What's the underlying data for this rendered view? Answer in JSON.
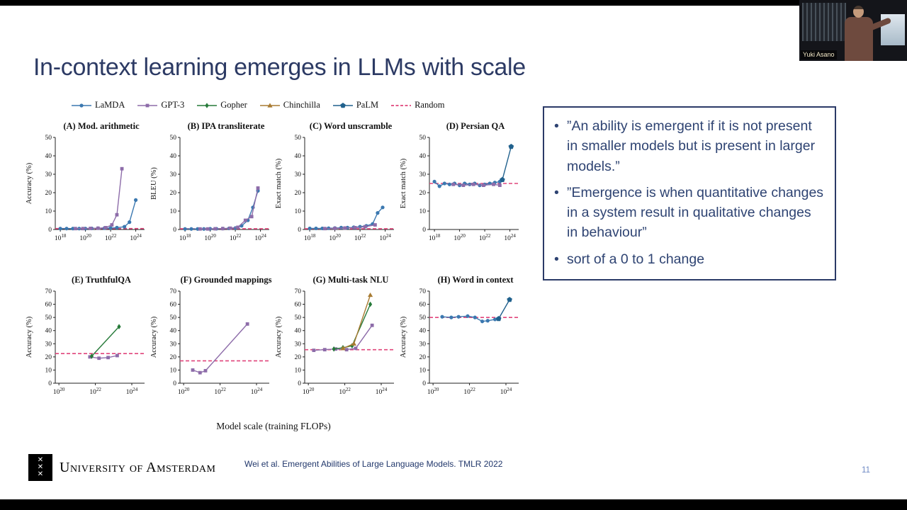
{
  "webcam": {
    "speaker_label": "Yuki Asano"
  },
  "slide": {
    "title": "In-context learning emerges in LLMs with scale",
    "bullets": [
      "”An ability is emergent if it is not present in smaller models but is present in larger models.”",
      "”Emergence is when quantitative changes in a system result in qualitative changes in behaviour”",
      "sort of a 0 to 1 change"
    ],
    "citation": "Wei et al. Emergent Abilities of Large Language Models. TMLR 2022",
    "page_number": "11",
    "footer_logo_text": "University of Amsterdam",
    "accent_color": "#2c3a64"
  },
  "figure": {
    "xlabel": "Model scale (training FLOPs)",
    "legend": [
      {
        "name": "LaMDA",
        "marker": "circle",
        "color": "#3b78b0"
      },
      {
        "name": "GPT-3",
        "marker": "square",
        "color": "#8d6ca9"
      },
      {
        "name": "Gopher",
        "marker": "diamond",
        "color": "#267a39"
      },
      {
        "name": "Chinchilla",
        "marker": "triangle",
        "color": "#a87b32"
      },
      {
        "name": "PaLM",
        "marker": "pentagon",
        "color": "#20618d"
      },
      {
        "name": "Random",
        "marker": "dashed-line",
        "color": "#e0457b"
      }
    ]
  },
  "chart_data": [
    {
      "id": "a",
      "row": 1,
      "type": "line",
      "title": "(A) Mod. arithmetic",
      "ylabel": "Accuracy (%)",
      "ylim": [
        0,
        50
      ],
      "yticks": [
        0,
        10,
        20,
        30,
        40,
        50
      ],
      "xlim": [
        17.6,
        24.7
      ],
      "xticks": [
        18,
        20,
        22,
        24
      ],
      "random": 0.5,
      "series": [
        {
          "name": "LaMDA",
          "points": [
            [
              18,
              0.5
            ],
            [
              18.5,
              0.5
            ],
            [
              19,
              0.5
            ],
            [
              19.5,
              0.5
            ],
            [
              20,
              0.5
            ],
            [
              20.5,
              0.6
            ],
            [
              21,
              0.7
            ],
            [
              21.5,
              0.7
            ],
            [
              22,
              0.8
            ],
            [
              22.5,
              1
            ],
            [
              23.1,
              1.5
            ],
            [
              23.5,
              4
            ],
            [
              24,
              16
            ]
          ]
        },
        {
          "name": "GPT-3",
          "points": [
            [
              19.2,
              0.5
            ],
            [
              19.8,
              0.5
            ],
            [
              20.4,
              0.6
            ],
            [
              21,
              0.7
            ],
            [
              21.6,
              1
            ],
            [
              22.1,
              2.5
            ],
            [
              22.5,
              8
            ],
            [
              22.9,
              33
            ]
          ]
        }
      ]
    },
    {
      "id": "b",
      "row": 1,
      "type": "line",
      "title": "(B) IPA transliterate",
      "ylabel": "BLEU (%)",
      "ylim": [
        0,
        50
      ],
      "yticks": [
        0,
        10,
        20,
        30,
        40,
        50
      ],
      "xlim": [
        17.6,
        24.7
      ],
      "xticks": [
        18,
        20,
        22,
        24
      ],
      "random": 0.4,
      "series": [
        {
          "name": "LaMDA",
          "points": [
            [
              18,
              0.3
            ],
            [
              18.5,
              0.3
            ],
            [
              19,
              0.3
            ],
            [
              19.5,
              0.3
            ],
            [
              20,
              0.4
            ],
            [
              20.5,
              0.4
            ],
            [
              21,
              0.5
            ],
            [
              21.5,
              0.6
            ],
            [
              22,
              0.8
            ],
            [
              22.5,
              2
            ],
            [
              23,
              5
            ],
            [
              23.4,
              12
            ],
            [
              23.8,
              21
            ]
          ]
        },
        {
          "name": "GPT-3",
          "points": [
            [
              19.2,
              0.3
            ],
            [
              19.8,
              0.3
            ],
            [
              20.4,
              0.4
            ],
            [
              21,
              0.5
            ],
            [
              21.6,
              0.7
            ],
            [
              22.2,
              1.2
            ],
            [
              22.8,
              5
            ],
            [
              23.3,
              7
            ],
            [
              23.8,
              22.5
            ]
          ]
        }
      ]
    },
    {
      "id": "c",
      "row": 1,
      "type": "line",
      "title": "(C) Word unscramble",
      "ylabel": "Exact match (%)",
      "ylim": [
        0,
        50
      ],
      "yticks": [
        0,
        10,
        20,
        30,
        40,
        50
      ],
      "xlim": [
        17.6,
        24.7
      ],
      "xticks": [
        18,
        20,
        22,
        24
      ],
      "random": 0.4,
      "series": [
        {
          "name": "LaMDA",
          "points": [
            [
              18,
              0.6
            ],
            [
              18.5,
              0.6
            ],
            [
              19,
              0.6
            ],
            [
              19.5,
              0.7
            ],
            [
              20,
              0.8
            ],
            [
              20.5,
              1
            ],
            [
              21,
              1
            ],
            [
              21.5,
              1.2
            ],
            [
              22,
              1.5
            ],
            [
              22.5,
              2
            ],
            [
              23,
              3
            ],
            [
              23.4,
              9
            ],
            [
              23.8,
              12
            ]
          ]
        },
        {
          "name": "GPT-3",
          "points": [
            [
              19.2,
              0.5
            ],
            [
              20,
              0.6
            ],
            [
              20.8,
              0.8
            ],
            [
              21.6,
              1
            ],
            [
              22.4,
              1.5
            ],
            [
              23.2,
              2.5
            ]
          ]
        }
      ]
    },
    {
      "id": "d",
      "row": 1,
      "type": "line",
      "title": "(D) Persian QA",
      "ylabel": "Exact match (%)",
      "ylim": [
        0,
        50
      ],
      "yticks": [
        0,
        10,
        20,
        30,
        40,
        50
      ],
      "xlim": [
        17.6,
        24.7
      ],
      "xticks": [
        18,
        20,
        22,
        24
      ],
      "random": 25,
      "series": [
        {
          "name": "LaMDA",
          "points": [
            [
              18,
              26
            ],
            [
              18.4,
              23.5
            ],
            [
              18.8,
              25
            ],
            [
              19.2,
              24.5
            ],
            [
              19.6,
              25
            ],
            [
              20,
              24
            ],
            [
              20.4,
              25
            ],
            [
              20.8,
              24.5
            ],
            [
              21.2,
              25
            ],
            [
              21.6,
              24
            ],
            [
              22,
              24.5
            ],
            [
              22.4,
              25
            ],
            [
              22.8,
              25.5
            ],
            [
              23.2,
              26
            ]
          ]
        },
        {
          "name": "GPT-3",
          "points": [
            [
              19.5,
              24.5
            ],
            [
              20.3,
              24
            ],
            [
              21.1,
              24.5
            ],
            [
              21.9,
              24
            ],
            [
              22.7,
              24.5
            ],
            [
              23.2,
              24
            ]
          ]
        },
        {
          "name": "PaLM",
          "points": [
            [
              23.4,
              27
            ],
            [
              24.1,
              45
            ]
          ]
        }
      ]
    },
    {
      "id": "e",
      "row": 2,
      "type": "line",
      "title": "(E) TruthfulQA",
      "ylabel": "Accuracy (%)",
      "ylim": [
        0,
        70
      ],
      "yticks": [
        0,
        10,
        20,
        30,
        40,
        50,
        60,
        70
      ],
      "xlim": [
        19.8,
        24.7
      ],
      "xticks": [
        20,
        22,
        24
      ],
      "random": 22.5,
      "series": [
        {
          "name": "GPT-3",
          "points": [
            [
              21.7,
              20
            ],
            [
              22.2,
              19
            ],
            [
              22.7,
              19.5
            ],
            [
              23.2,
              21
            ]
          ]
        },
        {
          "name": "Gopher",
          "points": [
            [
              21.8,
              20.5
            ],
            [
              23.3,
              43
            ]
          ]
        }
      ]
    },
    {
      "id": "f",
      "row": 2,
      "type": "line",
      "title": "(F) Grounded mappings",
      "ylabel": "Accuracy (%)",
      "ylim": [
        0,
        70
      ],
      "yticks": [
        0,
        10,
        20,
        30,
        40,
        50,
        60,
        70
      ],
      "xlim": [
        19.8,
        24.7
      ],
      "xticks": [
        20,
        22,
        24
      ],
      "random": 17,
      "series": [
        {
          "name": "GPT-3",
          "points": [
            [
              20.5,
              10
            ],
            [
              20.9,
              8
            ],
            [
              21.2,
              9.5
            ],
            [
              23.5,
              45
            ]
          ]
        }
      ]
    },
    {
      "id": "g",
      "row": 2,
      "type": "line",
      "title": "(G) Multi-task NLU",
      "ylabel": "Accuracy (%)",
      "ylim": [
        0,
        70
      ],
      "yticks": [
        0,
        10,
        20,
        30,
        40,
        50,
        60,
        70
      ],
      "xlim": [
        19.8,
        24.7
      ],
      "xticks": [
        20,
        22,
        24
      ],
      "random": 25.5,
      "series": [
        {
          "name": "GPT-3",
          "points": [
            [
              20.3,
              25
            ],
            [
              20.9,
              25.5
            ],
            [
              21.5,
              26
            ],
            [
              22.1,
              25.5
            ],
            [
              22.6,
              26.5
            ],
            [
              23.5,
              44
            ]
          ]
        },
        {
          "name": "Gopher",
          "points": [
            [
              21.4,
              26
            ],
            [
              21.9,
              27
            ],
            [
              22.4,
              28.5
            ],
            [
              23.4,
              60
            ]
          ]
        },
        {
          "name": "Chinchilla",
          "points": [
            [
              21.9,
              26.5
            ],
            [
              22.5,
              30
            ],
            [
              23.4,
              67
            ]
          ]
        }
      ]
    },
    {
      "id": "h",
      "row": 2,
      "type": "line",
      "title": "(H) Word in context",
      "ylabel": "Accuracy (%)",
      "ylim": [
        0,
        70
      ],
      "yticks": [
        0,
        10,
        20,
        30,
        40,
        50,
        60,
        70
      ],
      "xlim": [
        19.8,
        24.7
      ],
      "xticks": [
        20,
        22,
        24
      ],
      "random": 50,
      "series": [
        {
          "name": "LaMDA",
          "points": [
            [
              20.5,
              50.5
            ],
            [
              21,
              50
            ],
            [
              21.4,
              50.5
            ],
            [
              21.9,
              51
            ],
            [
              22.3,
              50
            ],
            [
              22.7,
              47
            ],
            [
              23,
              47.5
            ],
            [
              23.4,
              48.5
            ]
          ]
        },
        {
          "name": "PaLM",
          "points": [
            [
              23.6,
              49
            ],
            [
              24.2,
              63.5
            ]
          ]
        }
      ]
    }
  ]
}
